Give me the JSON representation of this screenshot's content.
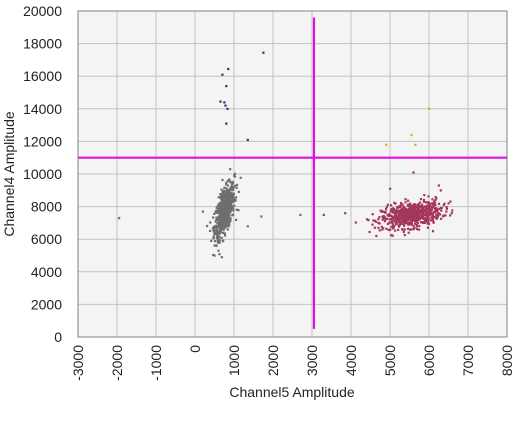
{
  "chart_data": {
    "type": "scatter",
    "title": "",
    "xlabel": "Channel5 Amplitude",
    "ylabel": "Channel4 Amplitude",
    "xlim": [
      -3000,
      8000
    ],
    "ylim": [
      0,
      20000
    ],
    "xticks": [
      -3000,
      -2000,
      -1000,
      0,
      1000,
      2000,
      3000,
      4000,
      5000,
      6000,
      7000,
      8000
    ],
    "yticks": [
      0,
      2000,
      4000,
      6000,
      8000,
      10000,
      12000,
      14000,
      16000,
      18000,
      20000
    ],
    "grid": true,
    "threshold_lines": {
      "x": 3050,
      "y": 11000,
      "color": "#e010e0"
    },
    "series": [
      {
        "color": "#2f2f7f",
        "points": [
          [
            850,
            16450
          ],
          [
            700,
            16100
          ],
          [
            1750,
            17450
          ],
          [
            800,
            15400
          ],
          [
            650,
            14450
          ],
          [
            750,
            14400
          ],
          [
            780,
            14200
          ],
          [
            830,
            14000
          ],
          [
            800,
            13100
          ],
          [
            1350,
            12100
          ]
        ]
      },
      {
        "color": "#6e6e6e",
        "cluster": {
          "cx": 760,
          "cy": 7750,
          "sx": 130,
          "sy": 800,
          "corr": 0.6,
          "n": 650
        },
        "points": [
          [
            -1950,
            7300
          ],
          [
            200,
            7700
          ],
          [
            1700,
            7400
          ],
          [
            2700,
            7500
          ],
          [
            1350,
            6800
          ],
          [
            500,
            5000
          ],
          [
            600,
            5300
          ],
          [
            550,
            5600
          ],
          [
            900,
            10300
          ],
          [
            1000,
            9900
          ]
        ]
      },
      {
        "color": "#a3365c",
        "cluster": {
          "cx": 5550,
          "cy": 7500,
          "sx": 380,
          "sy": 400,
          "corr": 0.35,
          "n": 650
        },
        "points": [
          [
            3300,
            7500
          ],
          [
            3850,
            7600
          ],
          [
            4650,
            6200
          ],
          [
            5600,
            10100
          ],
          [
            6250,
            9300
          ],
          [
            6500,
            8200
          ],
          [
            4800,
            6600
          ],
          [
            6300,
            9000
          ],
          [
            5000,
            9100
          ],
          [
            6100,
            6500
          ]
        ]
      },
      {
        "color": "#f0a020",
        "points": [
          [
            6000,
            14000
          ],
          [
            5550,
            12400
          ],
          [
            4900,
            11800
          ],
          [
            5650,
            11800
          ]
        ]
      }
    ]
  }
}
